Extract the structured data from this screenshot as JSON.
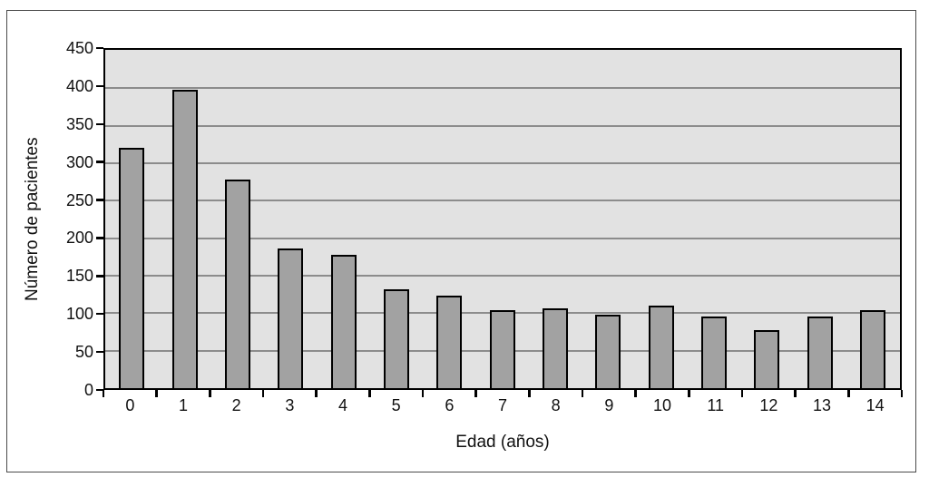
{
  "window": {
    "background": "#ffffff",
    "frame_border_color": "#4a4a4a"
  },
  "chart_data": {
    "type": "bar",
    "title": "",
    "categories": [
      "0",
      "1",
      "2",
      "3",
      "4",
      "5",
      "6",
      "7",
      "8",
      "9",
      "10",
      "11",
      "12",
      "13",
      "14"
    ],
    "values": [
      320,
      398,
      278,
      186,
      178,
      132,
      123,
      104,
      107,
      98,
      110,
      95,
      78,
      96,
      104
    ],
    "xlabel": "Edad (años)",
    "ylabel": "Número de pacientes",
    "ylim": [
      0,
      450
    ],
    "ytick_step": 50,
    "yticks": [
      0,
      50,
      100,
      150,
      200,
      250,
      300,
      350,
      400,
      450
    ],
    "grid": "horizontal",
    "legend": "none",
    "colors": {
      "plot_background": "#e2e2e2",
      "gridline": "#8c8c8c",
      "bar_fill": "#a2a2a2",
      "bar_border": "#000000",
      "axis": "#000000",
      "text": "#111111"
    }
  }
}
